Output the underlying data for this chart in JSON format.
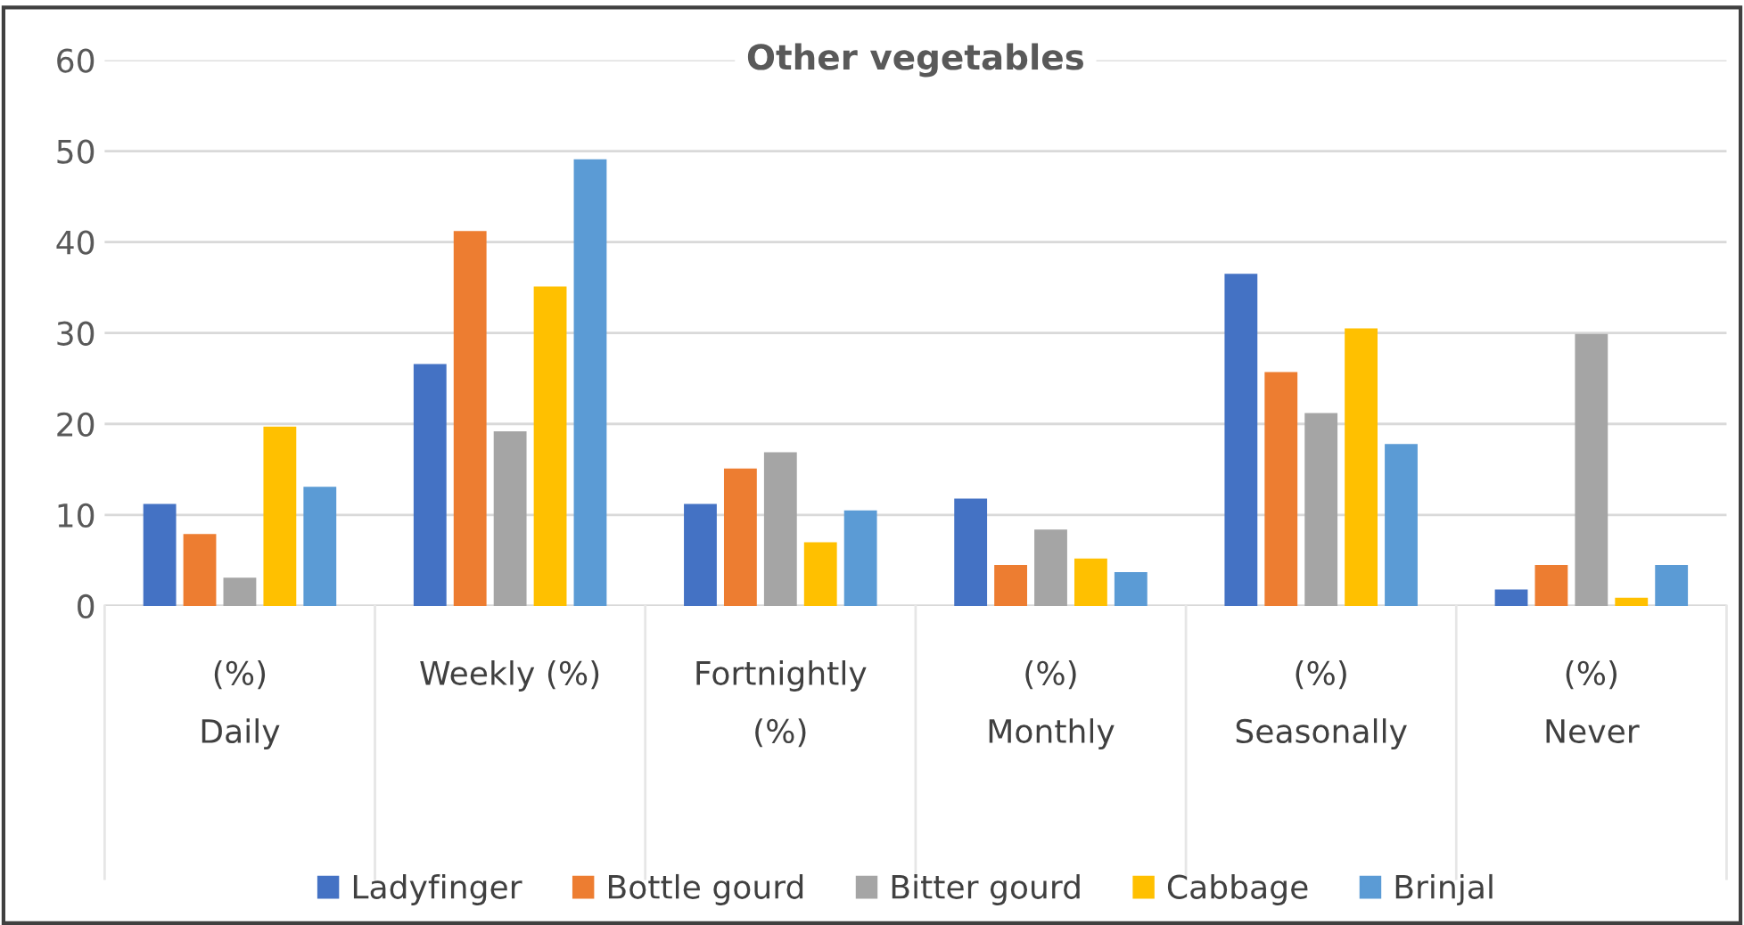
{
  "chart_data": {
    "type": "bar",
    "title": "Other vegetables",
    "categories": [
      "(%)\nDaily",
      "Weekly (%)",
      "Fortnightly\n(%)",
      "(%)\nMonthly",
      "(%)\nSeasonally",
      "(%)\nNever"
    ],
    "series": [
      {
        "name": "Ladyfinger",
        "color": "#4472c4",
        "values": [
          11.2,
          26.6,
          11.2,
          11.8,
          36.5,
          1.8
        ]
      },
      {
        "name": "Bottle gourd",
        "color": "#ed7d31",
        "values": [
          7.9,
          41.2,
          15.1,
          4.5,
          25.7,
          4.5
        ]
      },
      {
        "name": "Bitter gourd",
        "color": "#a5a5a5",
        "values": [
          3.1,
          19.2,
          16.9,
          8.4,
          21.2,
          29.9
        ]
      },
      {
        "name": "Cabbage",
        "color": "#ffc000",
        "values": [
          19.7,
          35.1,
          7.0,
          5.2,
          30.5,
          0.9
        ]
      },
      {
        "name": "Brinjal",
        "color": "#5b9bd5",
        "values": [
          13.1,
          49.1,
          10.5,
          3.7,
          17.8,
          4.5
        ]
      }
    ],
    "ylim": [
      0,
      60
    ],
    "yticks": [
      0,
      10,
      20,
      30,
      40,
      50,
      60
    ],
    "grid": "y",
    "legend": "bottom"
  }
}
